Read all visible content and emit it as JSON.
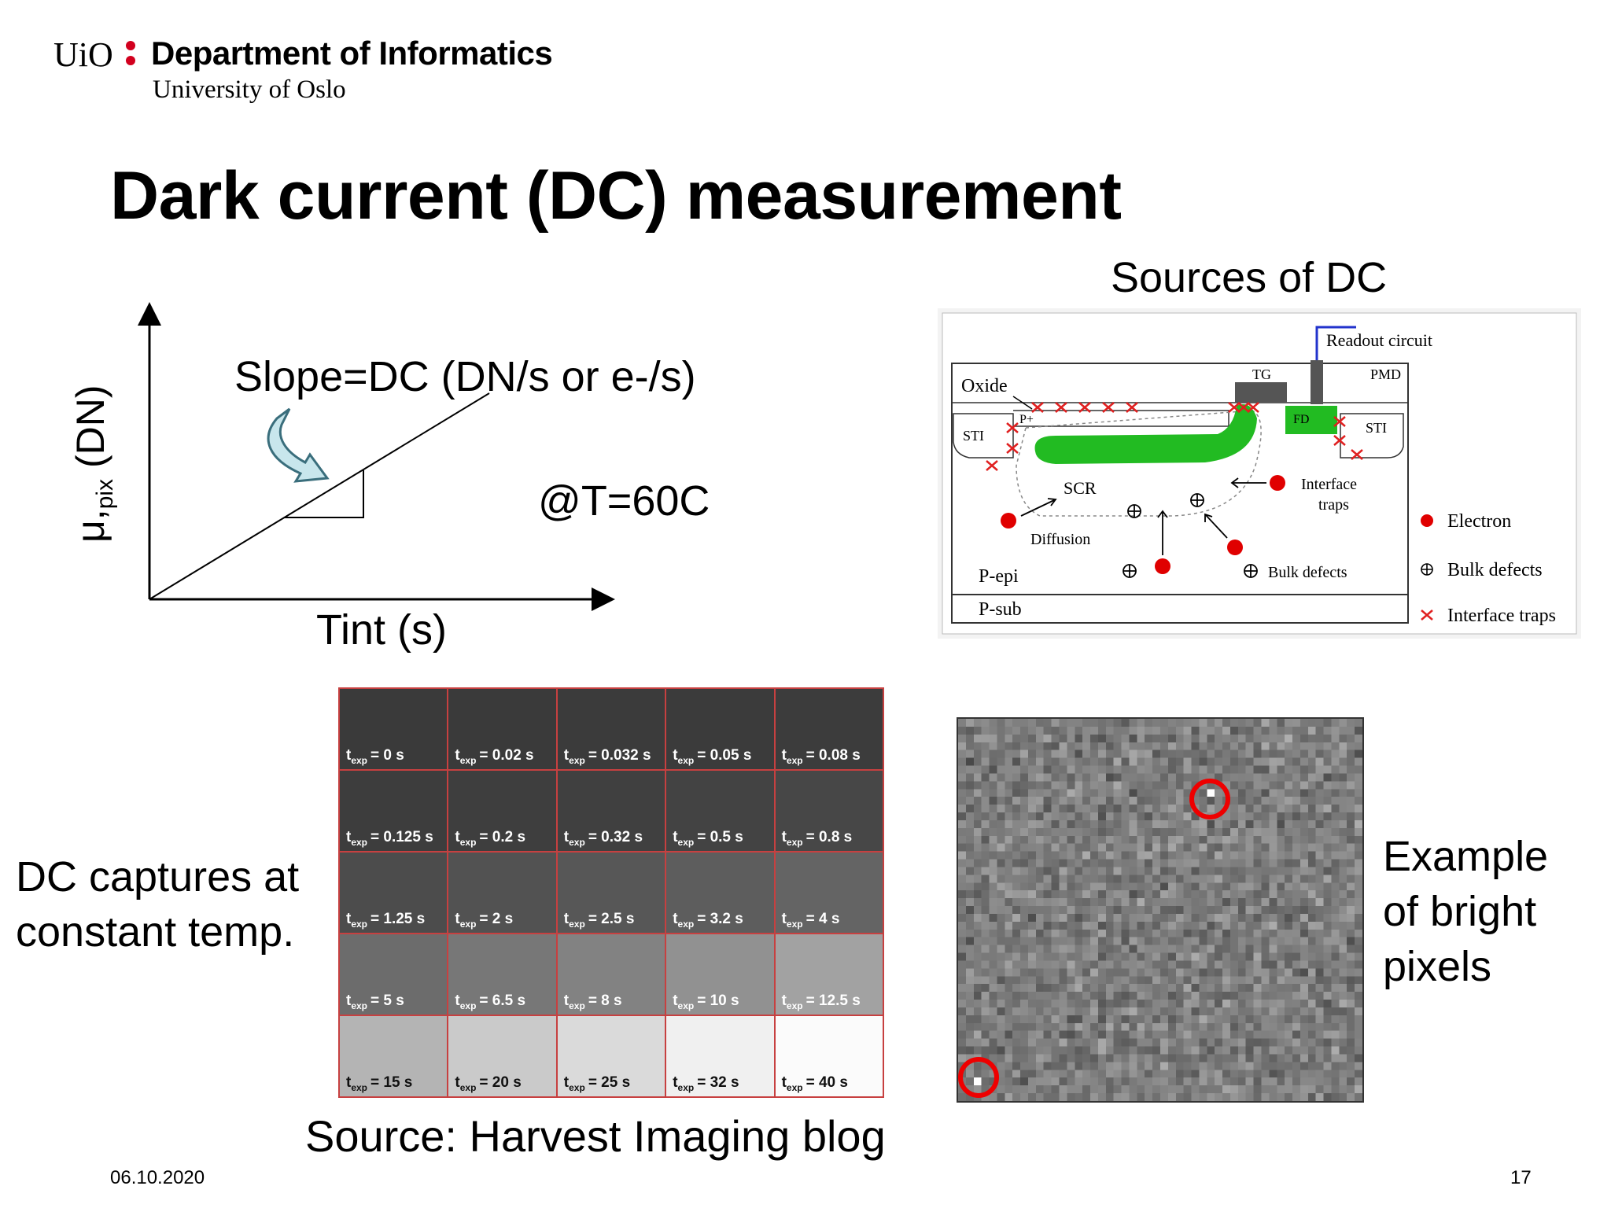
{
  "header": {
    "logo_uio": "UiO",
    "department": "Department of Informatics",
    "university": "University of Oslo"
  },
  "slide": {
    "title": "Dark current (DC) measurement",
    "date": "06.10.2020",
    "page_number": "17"
  },
  "plot": {
    "slope_label": "Slope=DC (DN/s or e-/s)",
    "temperature": "@T=60C",
    "x_label": "Tint (s)",
    "y_label_main": "μ,",
    "y_label_sub": "pix",
    "y_label_unit": " (DN)"
  },
  "diagram": {
    "title": "Sources of DC",
    "labels": {
      "readout": "Readout circuit",
      "oxide": "Oxide",
      "tg": "TG",
      "pmd": "PMD",
      "p_plus": "P+",
      "sti_left": "STI",
      "fd": "FD",
      "sti_right": "STI",
      "scr": "SCR",
      "interface": "Interface",
      "traps": "traps",
      "diffusion": "Diffusion",
      "p_epi": "P-epi",
      "bulk_defects_inner": "Bulk defects",
      "p_sub": "P-sub"
    },
    "legend": {
      "electron": "Electron",
      "bulk": "Bulk defects",
      "interface": "Interface traps"
    },
    "colors": {
      "electron": "#e00000",
      "green": "#22bb22",
      "readout_line": "#2233cc",
      "trap": "#e02020"
    }
  },
  "captures": {
    "caption_line1": "DC captures at",
    "caption_line2": "constant temp.",
    "source": "Source: Harvest Imaging blog",
    "prefix": "t",
    "sub": "exp",
    "cells": [
      {
        "value": "= 0 s",
        "gray": "#3a3a3a"
      },
      {
        "value": "= 0.02 s",
        "gray": "#3a3a3a"
      },
      {
        "value": "= 0.032 s",
        "gray": "#3b3b3b"
      },
      {
        "value": "= 0.05 s",
        "gray": "#3b3b3b"
      },
      {
        "value": "= 0.08 s",
        "gray": "#3c3c3c"
      },
      {
        "value": "= 0.125 s",
        "gray": "#3d3d3d"
      },
      {
        "value": "= 0.2 s",
        "gray": "#3e3e3e"
      },
      {
        "value": "= 0.32 s",
        "gray": "#404040"
      },
      {
        "value": "= 0.5 s",
        "gray": "#434343"
      },
      {
        "value": "= 0.8 s",
        "gray": "#474747"
      },
      {
        "value": "= 1.25 s",
        "gray": "#4c4c4c"
      },
      {
        "value": "= 2 s",
        "gray": "#525252"
      },
      {
        "value": "= 2.5 s",
        "gray": "#575757"
      },
      {
        "value": "= 3.2 s",
        "gray": "#5d5d5d"
      },
      {
        "value": "= 4 s",
        "gray": "#646464"
      },
      {
        "value": "= 5 s",
        "gray": "#6c6c6c"
      },
      {
        "value": "= 6.5 s",
        "gray": "#777777"
      },
      {
        "value": "= 8 s",
        "gray": "#828282"
      },
      {
        "value": "= 10 s",
        "gray": "#919191"
      },
      {
        "value": "= 12.5 s",
        "gray": "#a2a2a2"
      },
      {
        "value": "= 15 s",
        "gray": "#b4b4b4",
        "light": true
      },
      {
        "value": "= 20 s",
        "gray": "#cacaca",
        "light": true
      },
      {
        "value": "= 25 s",
        "gray": "#dadada",
        "light": true
      },
      {
        "value": "= 32 s",
        "gray": "#f0f0f0",
        "light": true
      },
      {
        "value": "= 40 s",
        "gray": "#fbfbfb",
        "light": true
      }
    ]
  },
  "bright_pixels": {
    "caption_line1": "Example",
    "caption_line2": "of bright",
    "caption_line3": "pixels",
    "ring_color": "#e00000"
  }
}
